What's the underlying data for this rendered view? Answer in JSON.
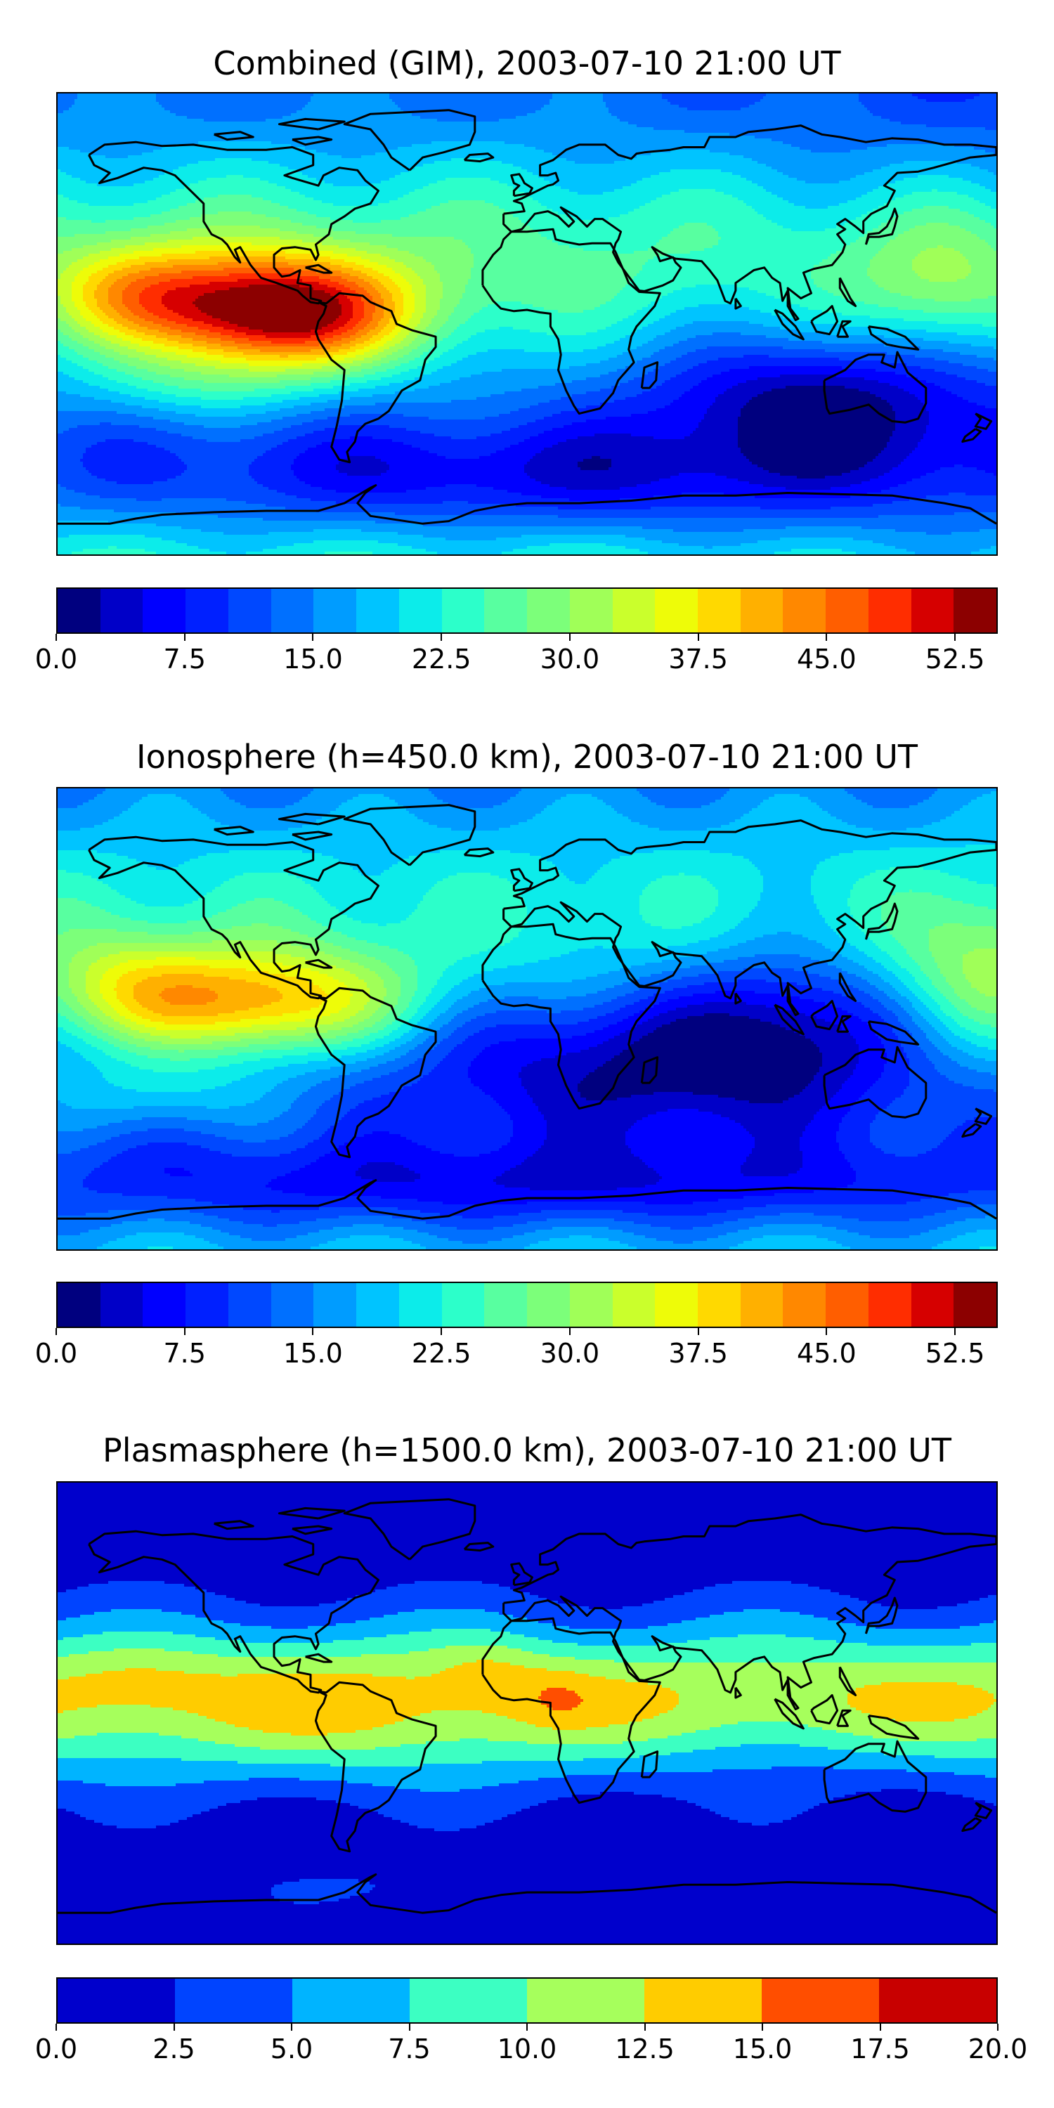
{
  "chart_data": [
    {
      "type": "heatmap",
      "title": "Combined (GIM), 2003-07-10 21:00 UT",
      "projection": "equirectangular world map with coastlines",
      "colormap": "jet",
      "levels": 22,
      "vmin": 0.0,
      "vmax": 55.0,
      "colorbar_ticks": [
        "0.0",
        "7.5",
        "15.0",
        "22.5",
        "30.0",
        "37.5",
        "45.0",
        "52.5"
      ],
      "features": [
        {
          "lon": -95,
          "lat": 5,
          "value": 52.5,
          "desc": "maximum over eastern Pacific / Central America"
        },
        {
          "lon": 130,
          "lat": -35,
          "value": 5,
          "desc": "minimum south of Australia"
        }
      ]
    },
    {
      "type": "heatmap",
      "title": "Ionosphere  (h=450.0 km), 2003-07-10 21:00 UT",
      "projection": "equirectangular world map with coastlines",
      "colormap": "jet",
      "levels": 22,
      "vmin": 0.0,
      "vmax": 55.0,
      "colorbar_ticks": [
        "0.0",
        "7.5",
        "15.0",
        "22.5",
        "30.0",
        "37.5",
        "45.0",
        "52.5"
      ],
      "features": [
        {
          "lon": -95,
          "lat": 5,
          "value": 40,
          "desc": "maximum over eastern Pacific"
        },
        {
          "lon": 30,
          "lat": -20,
          "value": 3,
          "desc": "low values over southern Africa / Indian Ocean"
        }
      ]
    },
    {
      "type": "heatmap",
      "title": "Plasmasphere (h=1500.0 km), 2003-07-10 21:00 UT",
      "projection": "equirectangular world map with coastlines",
      "colormap": "jet",
      "levels": 8,
      "vmin": 0.0,
      "vmax": 20.0,
      "colorbar_ticks": [
        "0.0",
        "2.5",
        "5.0",
        "7.5",
        "10.0",
        "12.5",
        "15.0",
        "17.5",
        "20.0"
      ],
      "features": [
        {
          "lon": -150,
          "lat": 15,
          "value": 13,
          "desc": "local maximum"
        },
        {
          "lon": -10,
          "lat": 20,
          "value": 13,
          "desc": "local maximum"
        },
        {
          "lon": 10,
          "lat": 5,
          "value": 13,
          "desc": "local maximum"
        },
        {
          "lon": 0,
          "lat": 80,
          "value": 1,
          "desc": "low at high latitudes"
        }
      ]
    }
  ],
  "colors": {
    "jet22": [
      "#00007f",
      "#0000c8",
      "#0000ff",
      "#0020ff",
      "#0048ff",
      "#0070ff",
      "#009cff",
      "#00c4ff",
      "#0cecea",
      "#2cffca",
      "#58ffa0",
      "#7cff7a",
      "#a0ff58",
      "#caff2c",
      "#eefc08",
      "#ffd900",
      "#ffb000",
      "#ff8800",
      "#ff5e00",
      "#ff2d00",
      "#d60000",
      "#8c0000"
    ],
    "jet8": [
      "#0000cc",
      "#0044ff",
      "#00b4ff",
      "#3cffc2",
      "#a6ff5c",
      "#ffcc00",
      "#ff4e00",
      "#c80000"
    ]
  }
}
